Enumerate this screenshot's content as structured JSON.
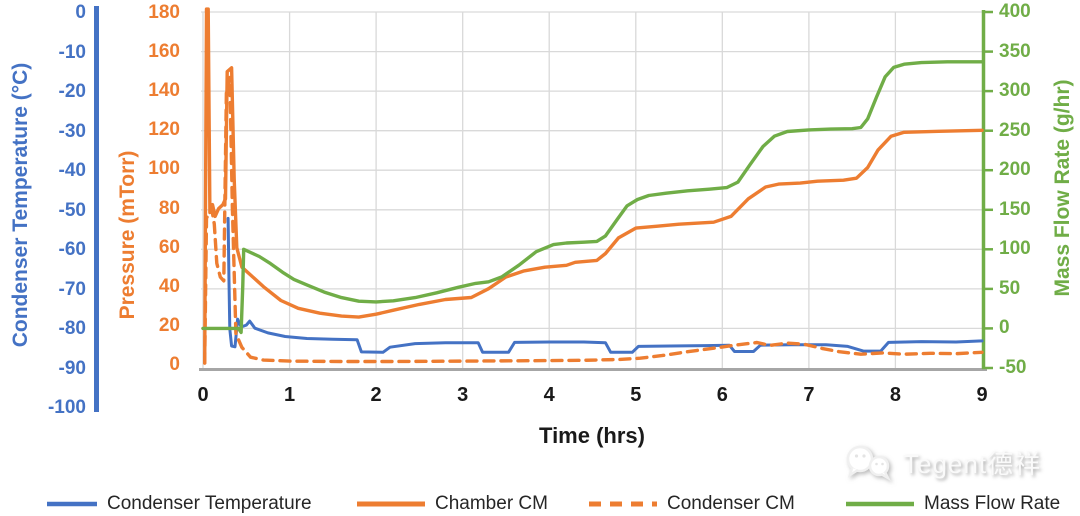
{
  "watermark": {
    "text": "Tegent德祥",
    "logo": "wechat-chat-bubbles-icon"
  },
  "colors": {
    "temperature_series": "#4472C4",
    "pressure_series": "#ED7D31",
    "mass_flow_series": "#70AD47",
    "gridline": "#D9D9D9",
    "x_axis_line": "#A6A6A6",
    "text": "#1a1a1a"
  },
  "chart_data": {
    "type": "line",
    "title": "",
    "grid": true,
    "legend_position": "bottom",
    "x_axis": {
      "title": "Time (hrs)",
      "range": [
        0,
        9
      ],
      "ticks": [
        0,
        1,
        2,
        3,
        4,
        5,
        6,
        7,
        8,
        9
      ]
    },
    "axes": {
      "temperature": {
        "title": "Condenser Temperature (°C)",
        "side": "left-outer",
        "range": [
          -100,
          0
        ],
        "ticks": [
          0,
          -10,
          -20,
          -30,
          -40,
          -50,
          -60,
          -70,
          -80,
          -90,
          -100
        ],
        "color": "#4472C4"
      },
      "pressure": {
        "title": "Pressure (mTorr)",
        "side": "left-inner",
        "range": [
          0,
          180
        ],
        "ticks": [
          180,
          160,
          140,
          120,
          100,
          80,
          60,
          40,
          20,
          0
        ],
        "color": "#ED7D31"
      },
      "mass_flow": {
        "title": "Mass Flow Rate (g/hr)",
        "side": "right",
        "range": [
          -50,
          400
        ],
        "ticks": [
          400,
          350,
          300,
          250,
          200,
          150,
          100,
          50,
          0,
          -50
        ],
        "color": "#70AD47"
      }
    },
    "series": [
      {
        "name": "Condenser Temperature",
        "axis": "temperature",
        "units": "°C",
        "style": "solid",
        "color": "#4472C4",
        "points": [
          [
            0.29,
            -52
          ],
          [
            0.3,
            -68
          ],
          [
            0.31,
            -80
          ],
          [
            0.33,
            -84.3
          ],
          [
            0.37,
            -84.5
          ],
          [
            0.4,
            -77.5
          ],
          [
            0.44,
            -79.5
          ],
          [
            0.5,
            -79
          ],
          [
            0.54,
            -78
          ],
          [
            0.6,
            -79.8
          ],
          [
            0.75,
            -81
          ],
          [
            0.95,
            -81.9
          ],
          [
            1.2,
            -82.4
          ],
          [
            1.5,
            -82.6
          ],
          [
            1.78,
            -82.7
          ],
          [
            1.83,
            -85.8
          ],
          [
            2.08,
            -85.9
          ],
          [
            2.16,
            -84.6
          ],
          [
            2.45,
            -83.7
          ],
          [
            2.8,
            -83.5
          ],
          [
            3.18,
            -83.5
          ],
          [
            3.23,
            -85.9
          ],
          [
            3.53,
            -85.9
          ],
          [
            3.6,
            -83.4
          ],
          [
            4,
            -83.3
          ],
          [
            4.4,
            -83.3
          ],
          [
            4.65,
            -83.5
          ],
          [
            4.71,
            -85.9
          ],
          [
            4.96,
            -85.9
          ],
          [
            5.03,
            -84.4
          ],
          [
            5.4,
            -84.3
          ],
          [
            5.8,
            -84.2
          ],
          [
            6.08,
            -84.1
          ],
          [
            6.14,
            -85.7
          ],
          [
            6.36,
            -85.7
          ],
          [
            6.44,
            -84.1
          ],
          [
            6.8,
            -84
          ],
          [
            7.2,
            -84
          ],
          [
            7.45,
            -84.4
          ],
          [
            7.63,
            -85.6
          ],
          [
            7.83,
            -85.6
          ],
          [
            7.92,
            -83.4
          ],
          [
            8.3,
            -83.2
          ],
          [
            8.7,
            -83.3
          ],
          [
            9,
            -83
          ]
        ]
      },
      {
        "name": "Chamber CM",
        "axis": "pressure",
        "units": "mTorr",
        "style": "solid",
        "color": "#ED7D31",
        "points": [
          [
            0.02,
            1
          ],
          [
            0.04,
            182
          ],
          [
            0.06,
            182
          ],
          [
            0.08,
            78
          ],
          [
            0.11,
            82
          ],
          [
            0.14,
            76
          ],
          [
            0.18,
            80
          ],
          [
            0.23,
            82
          ],
          [
            0.26,
            85
          ],
          [
            0.28,
            150
          ],
          [
            0.33,
            152
          ],
          [
            0.36,
            95
          ],
          [
            0.39,
            60
          ],
          [
            0.45,
            50
          ],
          [
            0.55,
            46
          ],
          [
            0.7,
            40
          ],
          [
            0.9,
            33
          ],
          [
            1.1,
            29
          ],
          [
            1.35,
            26.5
          ],
          [
            1.6,
            25
          ],
          [
            1.8,
            24.5
          ],
          [
            2,
            26
          ],
          [
            2.2,
            28
          ],
          [
            2.5,
            31
          ],
          [
            2.8,
            33.5
          ],
          [
            3.1,
            34.5
          ],
          [
            3.3,
            39
          ],
          [
            3.5,
            45
          ],
          [
            3.7,
            48
          ],
          [
            3.95,
            50
          ],
          [
            4.2,
            51
          ],
          [
            4.3,
            52.5
          ],
          [
            4.55,
            53.5
          ],
          [
            4.65,
            57
          ],
          [
            4.8,
            65
          ],
          [
            5,
            70
          ],
          [
            5.25,
            71
          ],
          [
            5.5,
            72
          ],
          [
            5.9,
            73
          ],
          [
            6.1,
            76
          ],
          [
            6.3,
            85
          ],
          [
            6.5,
            91
          ],
          [
            6.65,
            92.5
          ],
          [
            6.9,
            93
          ],
          [
            7.1,
            94
          ],
          [
            7.4,
            94.5
          ],
          [
            7.55,
            95.5
          ],
          [
            7.68,
            101
          ],
          [
            7.8,
            110
          ],
          [
            7.95,
            117
          ],
          [
            8.1,
            119
          ],
          [
            8.5,
            119.5
          ],
          [
            9,
            120
          ]
        ]
      },
      {
        "name": "Condenser CM",
        "axis": "pressure",
        "units": "mTorr",
        "style": "dashed",
        "color": "#ED7D31",
        "points": [
          [
            0.02,
            1
          ],
          [
            0.04,
            75
          ],
          [
            0.07,
            78
          ],
          [
            0.1,
            80
          ],
          [
            0.13,
            72
          ],
          [
            0.16,
            52
          ],
          [
            0.2,
            45
          ],
          [
            0.24,
            43
          ],
          [
            0.27,
            140
          ],
          [
            0.31,
            147
          ],
          [
            0.34,
            80
          ],
          [
            0.38,
            16
          ],
          [
            0.45,
            9
          ],
          [
            0.55,
            4
          ],
          [
            0.7,
            2.5
          ],
          [
            1,
            2
          ],
          [
            1.6,
            1.8
          ],
          [
            2.2,
            1.8
          ],
          [
            3,
            2
          ],
          [
            3.8,
            2.2
          ],
          [
            4.4,
            2.4
          ],
          [
            4.8,
            2.8
          ],
          [
            5.05,
            3.5
          ],
          [
            5.3,
            4.8
          ],
          [
            5.6,
            6.8
          ],
          [
            5.9,
            8.6
          ],
          [
            6.15,
            10.2
          ],
          [
            6.4,
            11.5
          ],
          [
            6.55,
            10
          ],
          [
            6.75,
            11.2
          ],
          [
            6.95,
            10.6
          ],
          [
            7.15,
            8.5
          ],
          [
            7.35,
            6.8
          ],
          [
            7.6,
            5.5
          ],
          [
            7.85,
            6.2
          ],
          [
            8.1,
            5.5
          ],
          [
            8.4,
            6
          ],
          [
            8.7,
            5.8
          ],
          [
            9,
            6.5
          ]
        ]
      },
      {
        "name": "Mass Flow Rate",
        "axis": "mass_flow",
        "units": "g/hr",
        "style": "solid",
        "color": "#70AD47",
        "points": [
          [
            0,
            0
          ],
          [
            0.2,
            0
          ],
          [
            0.41,
            0
          ],
          [
            0.44,
            -5
          ],
          [
            0.46,
            55
          ],
          [
            0.47,
            100
          ],
          [
            0.55,
            96
          ],
          [
            0.65,
            91
          ],
          [
            0.78,
            82
          ],
          [
            0.92,
            71
          ],
          [
            1.05,
            62
          ],
          [
            1.2,
            55
          ],
          [
            1.4,
            46
          ],
          [
            1.6,
            39
          ],
          [
            1.8,
            34.5
          ],
          [
            2,
            33.5
          ],
          [
            2.2,
            35
          ],
          [
            2.45,
            39
          ],
          [
            2.7,
            45
          ],
          [
            2.95,
            52
          ],
          [
            3.15,
            57
          ],
          [
            3.3,
            59
          ],
          [
            3.45,
            65
          ],
          [
            3.65,
            80
          ],
          [
            3.85,
            97
          ],
          [
            4.05,
            106
          ],
          [
            4.2,
            108
          ],
          [
            4.4,
            109
          ],
          [
            4.55,
            110
          ],
          [
            4.65,
            117
          ],
          [
            4.78,
            137
          ],
          [
            4.9,
            155
          ],
          [
            5.02,
            163
          ],
          [
            5.15,
            168
          ],
          [
            5.35,
            171
          ],
          [
            5.6,
            174
          ],
          [
            5.85,
            176
          ],
          [
            6.05,
            178
          ],
          [
            6.18,
            185
          ],
          [
            6.32,
            207
          ],
          [
            6.47,
            230
          ],
          [
            6.6,
            243
          ],
          [
            6.75,
            249
          ],
          [
            7,
            251
          ],
          [
            7.25,
            252
          ],
          [
            7.5,
            252.5
          ],
          [
            7.6,
            254
          ],
          [
            7.68,
            265
          ],
          [
            7.78,
            292
          ],
          [
            7.88,
            318
          ],
          [
            7.98,
            330
          ],
          [
            8.1,
            334
          ],
          [
            8.3,
            336
          ],
          [
            8.6,
            337
          ],
          [
            9,
            337
          ]
        ]
      }
    ]
  }
}
